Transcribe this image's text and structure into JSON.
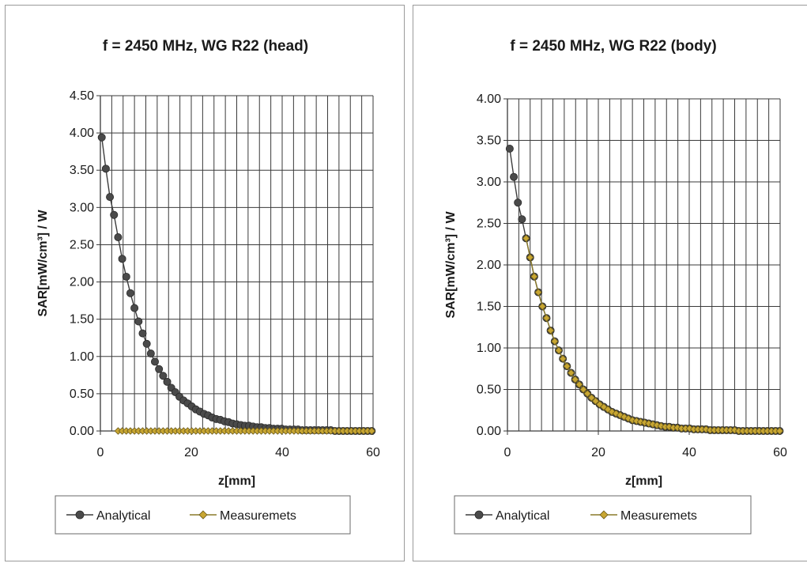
{
  "chart_data": [
    {
      "type": "line",
      "title": "f = 2450 MHz, WG R22 (head)",
      "xlabel": "z[mm]",
      "ylabel": "SAR[mW/cm³] / W",
      "xlim": [
        0,
        60
      ],
      "ylim": [
        0,
        4.5
      ],
      "x_ticks": [
        "0",
        "20",
        "40",
        "60"
      ],
      "y_ticks": [
        "0.00",
        "0.50",
        "1.00",
        "1.50",
        "2.00",
        "2.50",
        "3.00",
        "3.50",
        "4.00",
        "4.50"
      ],
      "grid": true,
      "legend_position": "bottom",
      "series": [
        {
          "name": "Analytical",
          "color": "#4a4a4a",
          "marker": "circle",
          "x": [
            0.3,
            1.2,
            2.1,
            3.0,
            3.9,
            4.8,
            5.7,
            6.6,
            7.5,
            8.4,
            9.3,
            10.2,
            11.1,
            12.0,
            12.9,
            13.8,
            14.7,
            15.6,
            16.5,
            17.4,
            18.3,
            19.2,
            20.1,
            21.0,
            21.9,
            22.8,
            23.7,
            24.6,
            25.5,
            26.4,
            27.3,
            28.2,
            29.1,
            30.0,
            30.9,
            31.8,
            32.7,
            33.6,
            34.5,
            35.4,
            36.3,
            37.2,
            38.1,
            39.0,
            39.9,
            40.8,
            41.7,
            42.6,
            43.5,
            44.4,
            45.3,
            46.2,
            47.1,
            48.0,
            48.9,
            49.8,
            50.7,
            51.6,
            52.5,
            53.4,
            54.3,
            55.2,
            56.1,
            57.0,
            57.9,
            58.8,
            59.7
          ],
          "y": [
            3.94,
            3.52,
            3.14,
            2.9,
            2.6,
            2.31,
            2.07,
            1.85,
            1.65,
            1.47,
            1.31,
            1.17,
            1.04,
            0.93,
            0.83,
            0.74,
            0.66,
            0.58,
            0.52,
            0.46,
            0.41,
            0.37,
            0.33,
            0.29,
            0.26,
            0.23,
            0.21,
            0.18,
            0.16,
            0.15,
            0.13,
            0.12,
            0.1,
            0.09,
            0.08,
            0.07,
            0.07,
            0.06,
            0.05,
            0.05,
            0.04,
            0.04,
            0.03,
            0.03,
            0.03,
            0.02,
            0.02,
            0.02,
            0.02,
            0.01,
            0.01,
            0.01,
            0.01,
            0.01,
            0.01,
            0.01,
            0.01,
            0.0,
            0.0,
            0.0,
            0.0,
            0.0,
            0.0,
            0.0,
            0.0,
            0.0,
            0.0
          ]
        },
        {
          "name": "Measuremets",
          "color": "#c8a632",
          "marker": "diamond",
          "x": [
            3.9,
            4.8,
            5.7,
            6.6,
            7.5,
            8.4,
            9.3,
            10.2,
            11.1,
            12.0,
            12.9,
            13.8,
            14.7,
            15.6,
            16.5,
            17.4,
            18.3,
            19.2,
            20.1,
            21.0,
            21.9,
            22.8,
            23.7,
            24.6,
            25.5,
            26.4,
            27.3,
            28.2,
            29.1,
            30.0,
            30.9,
            31.8,
            32.7,
            33.6,
            34.5,
            35.4,
            36.3,
            37.2,
            38.1,
            39.0,
            39.9,
            40.8,
            41.7,
            42.6,
            43.5,
            44.4,
            45.3,
            46.2,
            47.1,
            48.0,
            48.9,
            49.8,
            50.7,
            51.6,
            52.5,
            53.4,
            54.3,
            55.2,
            56.1,
            57.0,
            57.9,
            58.8,
            59.7
          ],
          "y": [
            0,
            0,
            0,
            0,
            0,
            0,
            0,
            0,
            0,
            0,
            0,
            0,
            0,
            0,
            0,
            0,
            0,
            0,
            0,
            0,
            0,
            0,
            0,
            0,
            0,
            0,
            0,
            0,
            0,
            0,
            0,
            0,
            0,
            0,
            0,
            0,
            0,
            0,
            0,
            0,
            0,
            0,
            0,
            0,
            0,
            0,
            0,
            0,
            0,
            0,
            0,
            0,
            0,
            0,
            0,
            0,
            0,
            0,
            0,
            0,
            0,
            0,
            0
          ]
        }
      ]
    },
    {
      "type": "line",
      "title": "f = 2450 MHz, WG R22 (body)",
      "xlabel": "z[mm]",
      "ylabel": "SAR[mW/cm³] / W",
      "xlim": [
        0,
        60
      ],
      "ylim": [
        0,
        4.0
      ],
      "x_ticks": [
        "0",
        "20",
        "40",
        "60"
      ],
      "y_ticks": [
        "0.00",
        "0.50",
        "1.00",
        "1.50",
        "2.00",
        "2.50",
        "3.00",
        "3.50",
        "4.00"
      ],
      "grid": true,
      "legend_position": "bottom",
      "series": [
        {
          "name": "Analytical",
          "color": "#4a4a4a",
          "marker": "circle",
          "x": [
            0.5,
            1.4,
            2.3,
            3.2,
            4.1,
            5.0,
            5.9,
            6.8,
            7.7,
            8.6,
            9.5,
            10.4,
            11.3,
            12.2,
            13.1,
            14.0,
            14.9,
            15.8,
            16.7,
            17.6,
            18.5,
            19.4,
            20.3,
            21.2,
            22.1,
            23.0,
            23.9,
            24.8,
            25.7,
            26.6,
            27.5,
            28.4,
            29.3,
            30.2,
            31.1,
            32.0,
            32.9,
            33.8,
            34.7,
            35.6,
            36.5,
            37.4,
            38.3,
            39.2,
            40.1,
            41.0,
            41.9,
            42.8,
            43.7,
            44.6,
            45.5,
            46.4,
            47.3,
            48.2,
            49.1,
            50.0,
            50.9,
            51.8,
            52.7,
            53.6,
            54.5,
            55.4,
            56.3,
            57.2,
            58.1,
            59.0,
            59.9
          ],
          "y": [
            3.4,
            3.06,
            2.75,
            2.55,
            2.32,
            2.09,
            1.86,
            1.67,
            1.5,
            1.36,
            1.21,
            1.08,
            0.97,
            0.87,
            0.78,
            0.7,
            0.62,
            0.56,
            0.5,
            0.45,
            0.4,
            0.36,
            0.32,
            0.29,
            0.26,
            0.23,
            0.21,
            0.19,
            0.17,
            0.15,
            0.13,
            0.12,
            0.11,
            0.1,
            0.09,
            0.08,
            0.07,
            0.06,
            0.05,
            0.05,
            0.04,
            0.04,
            0.03,
            0.03,
            0.03,
            0.02,
            0.02,
            0.02,
            0.02,
            0.01,
            0.01,
            0.01,
            0.01,
            0.01,
            0.01,
            0.01,
            0.0,
            0.0,
            0.0,
            0.0,
            0.0,
            0.0,
            0.0,
            0.0,
            0.0,
            0.0,
            0.0
          ]
        },
        {
          "name": "Measuremets",
          "color": "#c8a632",
          "marker": "diamond",
          "x": [
            4.1,
            5.0,
            5.9,
            6.8,
            7.7,
            8.6,
            9.5,
            10.4,
            11.3,
            12.2,
            13.1,
            14.0,
            14.9,
            15.8,
            16.7,
            17.6,
            18.5,
            19.4,
            20.3,
            21.2,
            22.1,
            23.0,
            23.9,
            24.8,
            25.7,
            26.6,
            27.5,
            28.4,
            29.3,
            30.2,
            31.1,
            32.0,
            32.9,
            33.8,
            34.7,
            35.6,
            36.5,
            37.4,
            38.3,
            39.2,
            40.1,
            41.0,
            41.9,
            42.8,
            43.7,
            44.6,
            45.5,
            46.4,
            47.3,
            48.2,
            49.1,
            50.0,
            50.9,
            51.8,
            52.7,
            53.6,
            54.5,
            55.4,
            56.3,
            57.2,
            58.1,
            59.0,
            59.9
          ],
          "y": [
            2.32,
            2.09,
            1.86,
            1.67,
            1.5,
            1.36,
            1.21,
            1.08,
            0.97,
            0.87,
            0.78,
            0.7,
            0.62,
            0.56,
            0.5,
            0.45,
            0.4,
            0.36,
            0.32,
            0.29,
            0.26,
            0.23,
            0.21,
            0.19,
            0.17,
            0.15,
            0.13,
            0.12,
            0.11,
            0.1,
            0.09,
            0.08,
            0.07,
            0.06,
            0.05,
            0.05,
            0.04,
            0.04,
            0.03,
            0.03,
            0.03,
            0.02,
            0.02,
            0.02,
            0.02,
            0.01,
            0.01,
            0.01,
            0.01,
            0.01,
            0.01,
            0.01,
            0.0,
            0.0,
            0.0,
            0.0,
            0.0,
            0.0,
            0.0,
            0.0,
            0.0,
            0.0,
            0.0
          ]
        }
      ]
    }
  ]
}
